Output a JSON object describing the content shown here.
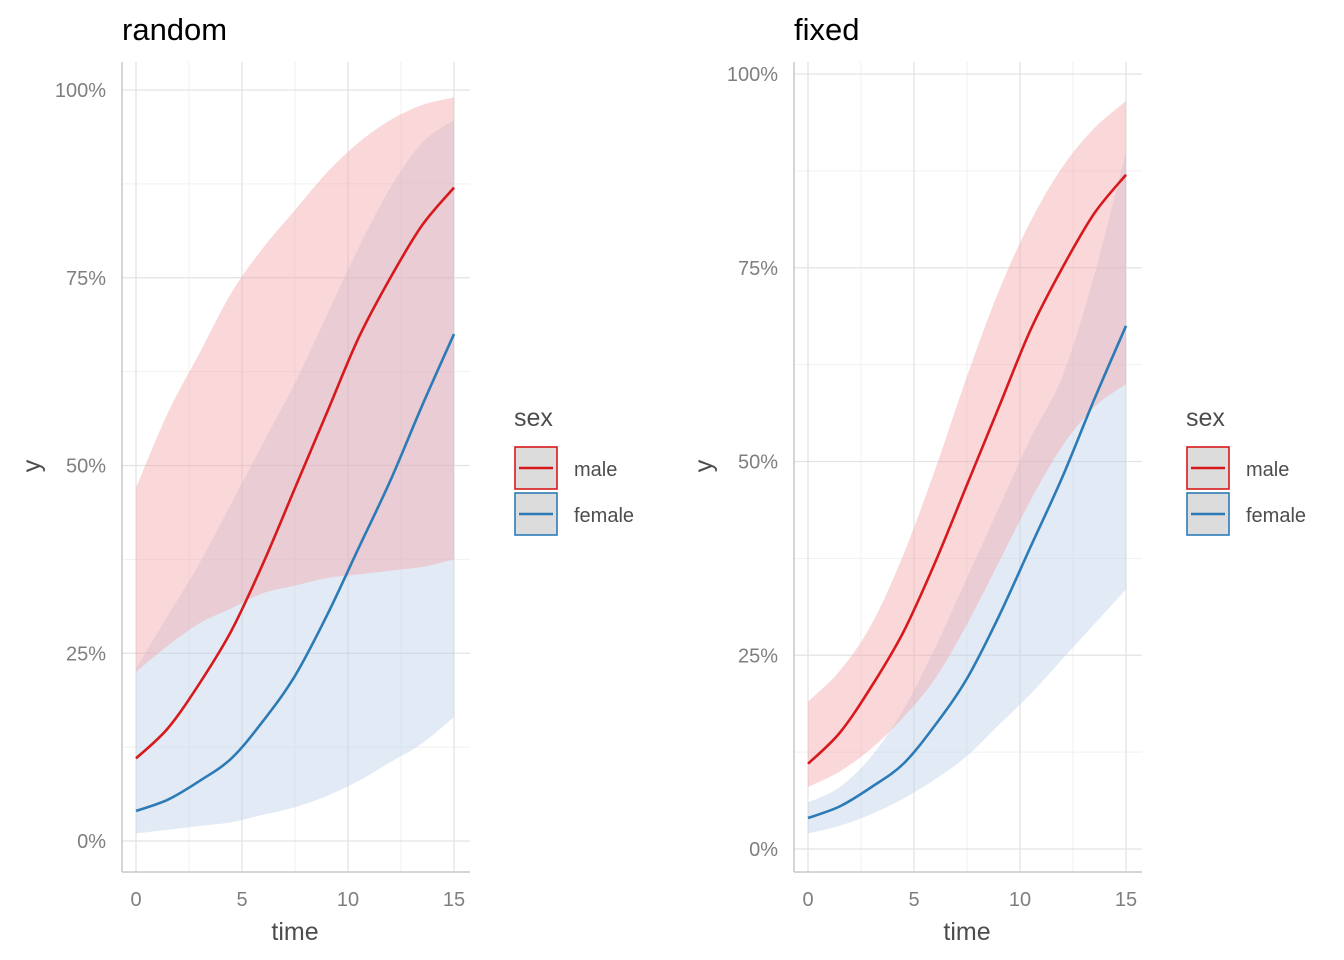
{
  "colors": {
    "male": "#d7191c",
    "female": "#2c7bb6",
    "male_ribbon": "#f4a3a7",
    "female_ribbon": "#b9cfe8",
    "grid_major": "#e3e3e3",
    "grid_minor": "#f1f1f1",
    "axis_line": "#c8c8c8",
    "tick_text": "#7f7f7f",
    "axis_title": "#4d4d4d",
    "title": "#000000"
  },
  "chart_data": [
    {
      "type": "line",
      "title": "random",
      "xlabel": "time",
      "ylabel": "y",
      "xlim": [
        0,
        15
      ],
      "ylim": [
        0,
        1
      ],
      "x_ticks": [
        0,
        5,
        10,
        15
      ],
      "x_tick_labels": [
        "0",
        "5",
        "10",
        "15"
      ],
      "y_ticks": [
        0,
        0.25,
        0.5,
        0.75,
        1.0
      ],
      "y_tick_labels": [
        "0%",
        "25%",
        "50%",
        "75%",
        "100%"
      ],
      "legend": {
        "title": "sex",
        "position": "right",
        "entries": [
          "male",
          "female"
        ]
      },
      "x": [
        0,
        1.5,
        3,
        4.5,
        6,
        7.5,
        9,
        10.5,
        12,
        13.5,
        15
      ],
      "series": [
        {
          "name": "male",
          "values": [
            0.11,
            0.15,
            0.21,
            0.28,
            0.37,
            0.47,
            0.57,
            0.67,
            0.75,
            0.82,
            0.87
          ],
          "lower": [
            0.225,
            0.26,
            0.29,
            0.31,
            0.33,
            0.34,
            0.35,
            0.355,
            0.36,
            0.365,
            0.375
          ],
          "upper": [
            0.47,
            0.57,
            0.65,
            0.73,
            0.79,
            0.84,
            0.89,
            0.93,
            0.96,
            0.98,
            0.99
          ]
        },
        {
          "name": "female",
          "values": [
            0.04,
            0.055,
            0.08,
            0.11,
            0.16,
            0.22,
            0.3,
            0.39,
            0.48,
            0.58,
            0.675
          ],
          "lower": [
            0.01,
            0.015,
            0.02,
            0.025,
            0.035,
            0.045,
            0.06,
            0.08,
            0.105,
            0.13,
            0.165
          ],
          "upper": [
            0.23,
            0.3,
            0.37,
            0.45,
            0.53,
            0.61,
            0.7,
            0.79,
            0.87,
            0.93,
            0.96
          ]
        }
      ]
    },
    {
      "type": "line",
      "title": "fixed",
      "xlabel": "time",
      "ylabel": "y",
      "xlim": [
        0,
        15
      ],
      "ylim": [
        0,
        1
      ],
      "x_ticks": [
        0,
        5,
        10,
        15
      ],
      "x_tick_labels": [
        "0",
        "5",
        "10",
        "15"
      ],
      "y_ticks": [
        0,
        0.25,
        0.5,
        0.75,
        1.0
      ],
      "y_tick_labels": [
        "0%",
        "25%",
        "50%",
        "75%",
        "100%"
      ],
      "legend": {
        "title": "sex",
        "position": "right",
        "entries": [
          "male",
          "female"
        ]
      },
      "x": [
        0,
        1.5,
        3,
        4.5,
        6,
        7.5,
        9,
        10.5,
        12,
        13.5,
        15
      ],
      "series": [
        {
          "name": "male",
          "values": [
            0.11,
            0.15,
            0.21,
            0.28,
            0.37,
            0.47,
            0.57,
            0.67,
            0.75,
            0.82,
            0.87
          ],
          "lower": [
            0.08,
            0.1,
            0.13,
            0.17,
            0.22,
            0.29,
            0.37,
            0.45,
            0.52,
            0.57,
            0.6
          ],
          "upper": [
            0.19,
            0.23,
            0.29,
            0.38,
            0.49,
            0.61,
            0.72,
            0.81,
            0.88,
            0.93,
            0.965
          ]
        },
        {
          "name": "female",
          "values": [
            0.04,
            0.055,
            0.08,
            0.11,
            0.16,
            0.22,
            0.3,
            0.39,
            0.48,
            0.58,
            0.675
          ],
          "lower": [
            0.02,
            0.03,
            0.045,
            0.065,
            0.09,
            0.12,
            0.16,
            0.2,
            0.245,
            0.29,
            0.335
          ],
          "upper": [
            0.06,
            0.08,
            0.12,
            0.18,
            0.26,
            0.35,
            0.44,
            0.53,
            0.61,
            0.74,
            0.9
          ]
        }
      ]
    }
  ]
}
